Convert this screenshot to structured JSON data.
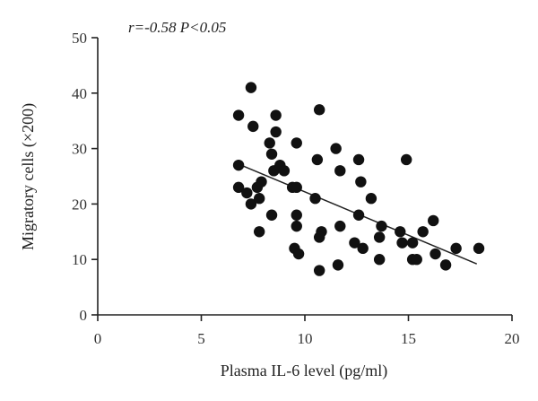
{
  "chart_data": {
    "type": "scatter",
    "annotation": "r=-0.58 P<0.05",
    "xlabel": "Plasma IL-6 level (pg/ml)",
    "ylabel": "Migratory cells (×200)",
    "xlim": [
      0,
      20
    ],
    "ylim": [
      0,
      50
    ],
    "x_ticks": [
      0,
      5,
      10,
      15,
      20
    ],
    "y_ticks": [
      0,
      10,
      20,
      30,
      40,
      50
    ],
    "grid": false,
    "trend_line": {
      "x": [
        6.8,
        18.3
      ],
      "y": [
        27.2,
        9.2
      ]
    },
    "points": [
      {
        "x": 6.8,
        "y": 36
      },
      {
        "x": 7.4,
        "y": 41
      },
      {
        "x": 7.5,
        "y": 34
      },
      {
        "x": 6.8,
        "y": 27
      },
      {
        "x": 6.8,
        "y": 23
      },
      {
        "x": 7.2,
        "y": 22
      },
      {
        "x": 7.4,
        "y": 20
      },
      {
        "x": 7.7,
        "y": 23
      },
      {
        "x": 7.9,
        "y": 24
      },
      {
        "x": 7.8,
        "y": 21
      },
      {
        "x": 7.8,
        "y": 15
      },
      {
        "x": 8.3,
        "y": 31
      },
      {
        "x": 8.4,
        "y": 29
      },
      {
        "x": 8.6,
        "y": 36
      },
      {
        "x": 8.6,
        "y": 33
      },
      {
        "x": 8.5,
        "y": 26
      },
      {
        "x": 8.8,
        "y": 27
      },
      {
        "x": 9.0,
        "y": 26
      },
      {
        "x": 8.4,
        "y": 18
      },
      {
        "x": 9.4,
        "y": 23
      },
      {
        "x": 9.6,
        "y": 31
      },
      {
        "x": 9.6,
        "y": 23
      },
      {
        "x": 9.6,
        "y": 18
      },
      {
        "x": 9.6,
        "y": 16
      },
      {
        "x": 9.5,
        "y": 12
      },
      {
        "x": 9.7,
        "y": 11
      },
      {
        "x": 10.5,
        "y": 21
      },
      {
        "x": 10.6,
        "y": 28
      },
      {
        "x": 10.7,
        "y": 37
      },
      {
        "x": 10.8,
        "y": 15
      },
      {
        "x": 10.7,
        "y": 14
      },
      {
        "x": 10.7,
        "y": 8
      },
      {
        "x": 11.5,
        "y": 30
      },
      {
        "x": 11.7,
        "y": 26
      },
      {
        "x": 11.7,
        "y": 16
      },
      {
        "x": 11.6,
        "y": 9
      },
      {
        "x": 12.4,
        "y": 13
      },
      {
        "x": 12.6,
        "y": 28
      },
      {
        "x": 12.7,
        "y": 24
      },
      {
        "x": 12.6,
        "y": 18
      },
      {
        "x": 12.8,
        "y": 12
      },
      {
        "x": 13.2,
        "y": 21
      },
      {
        "x": 13.7,
        "y": 16
      },
      {
        "x": 13.6,
        "y": 14
      },
      {
        "x": 13.6,
        "y": 10
      },
      {
        "x": 14.6,
        "y": 15
      },
      {
        "x": 14.7,
        "y": 13
      },
      {
        "x": 14.9,
        "y": 28
      },
      {
        "x": 15.2,
        "y": 13
      },
      {
        "x": 15.2,
        "y": 10
      },
      {
        "x": 15.4,
        "y": 10
      },
      {
        "x": 15.7,
        "y": 15
      },
      {
        "x": 16.2,
        "y": 17
      },
      {
        "x": 16.3,
        "y": 11
      },
      {
        "x": 16.8,
        "y": 9
      },
      {
        "x": 17.3,
        "y": 12
      },
      {
        "x": 18.4,
        "y": 12
      }
    ]
  }
}
